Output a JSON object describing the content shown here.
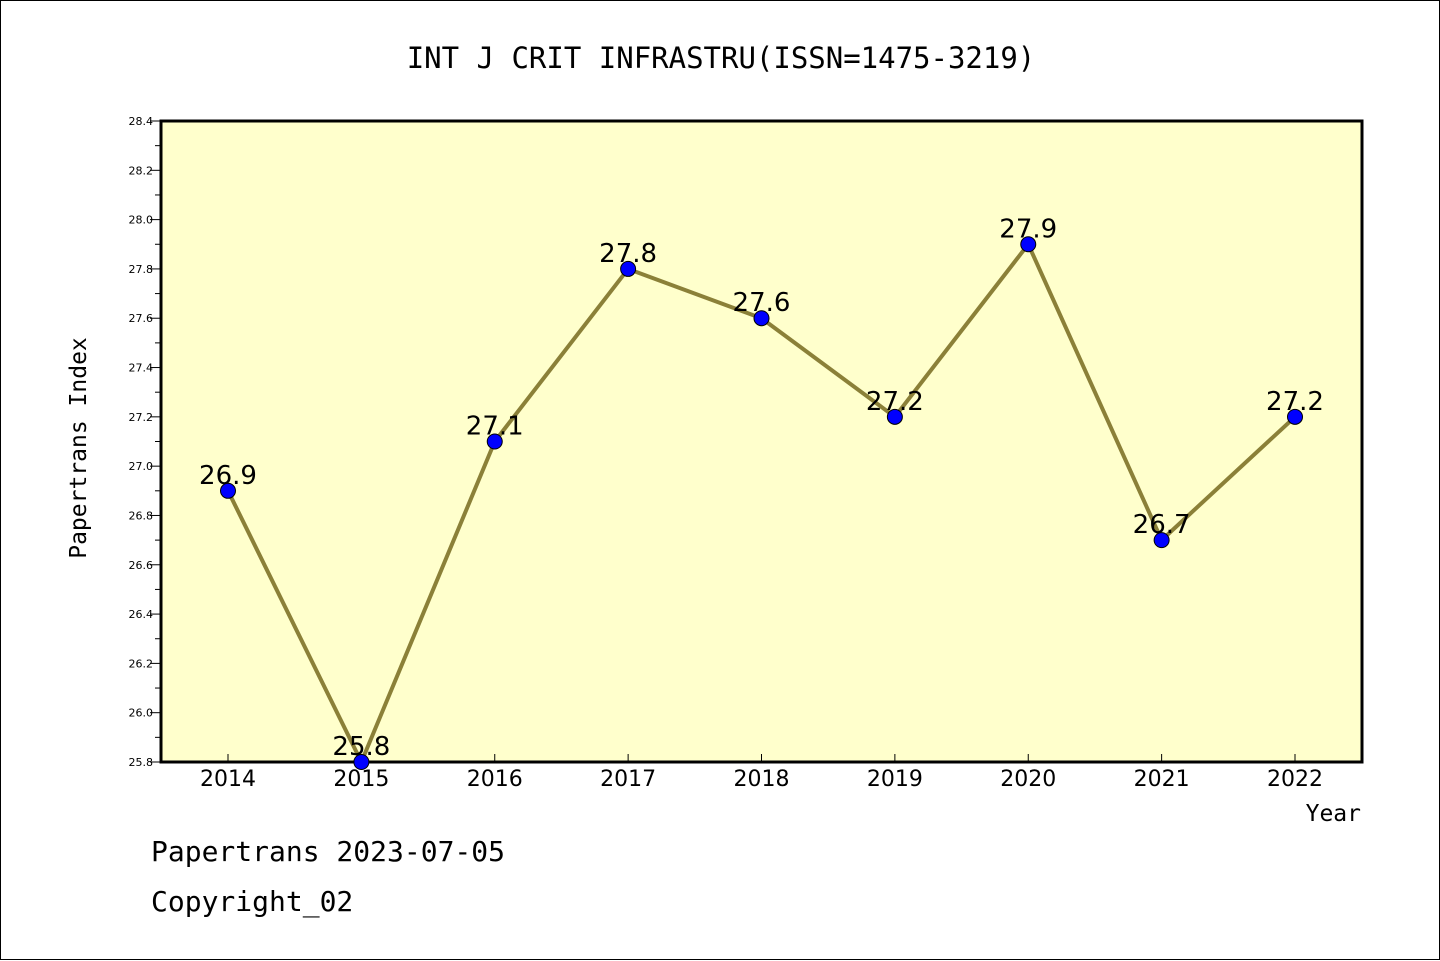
{
  "chart_data": {
    "type": "line",
    "title": "INT J CRIT INFRASTRU(ISSN=1475-3219)",
    "xlabel": "Year",
    "ylabel": "Papertrans Index",
    "categories": [
      "2014",
      "2015",
      "2016",
      "2017",
      "2018",
      "2019",
      "2020",
      "2021",
      "2022"
    ],
    "series": [
      {
        "values": [
          26.9,
          25.8,
          27.1,
          27.8,
          27.6,
          27.2,
          27.9,
          26.7,
          27.2
        ],
        "labels": [
          "26.9",
          "25.8",
          "27.1",
          "27.8",
          "27.6",
          "27.2",
          "27.9",
          "26.7",
          "27.2"
        ]
      }
    ],
    "ylim": [
      25.8,
      28.4
    ],
    "yticks": [
      "25.8",
      "26.0",
      "26.2",
      "26.4",
      "26.6",
      "26.8",
      "27.0",
      "27.2",
      "27.4",
      "27.6",
      "27.8",
      "28.0",
      "28.2",
      "28.4"
    ],
    "grid": false,
    "colors": {
      "plot_background": "#ffffcc",
      "line": "#8b8038",
      "marker": "#0000ff"
    }
  },
  "footer": {
    "date_line": "Papertrans 2023-07-05",
    "copyright_line": "Copyright_02"
  }
}
